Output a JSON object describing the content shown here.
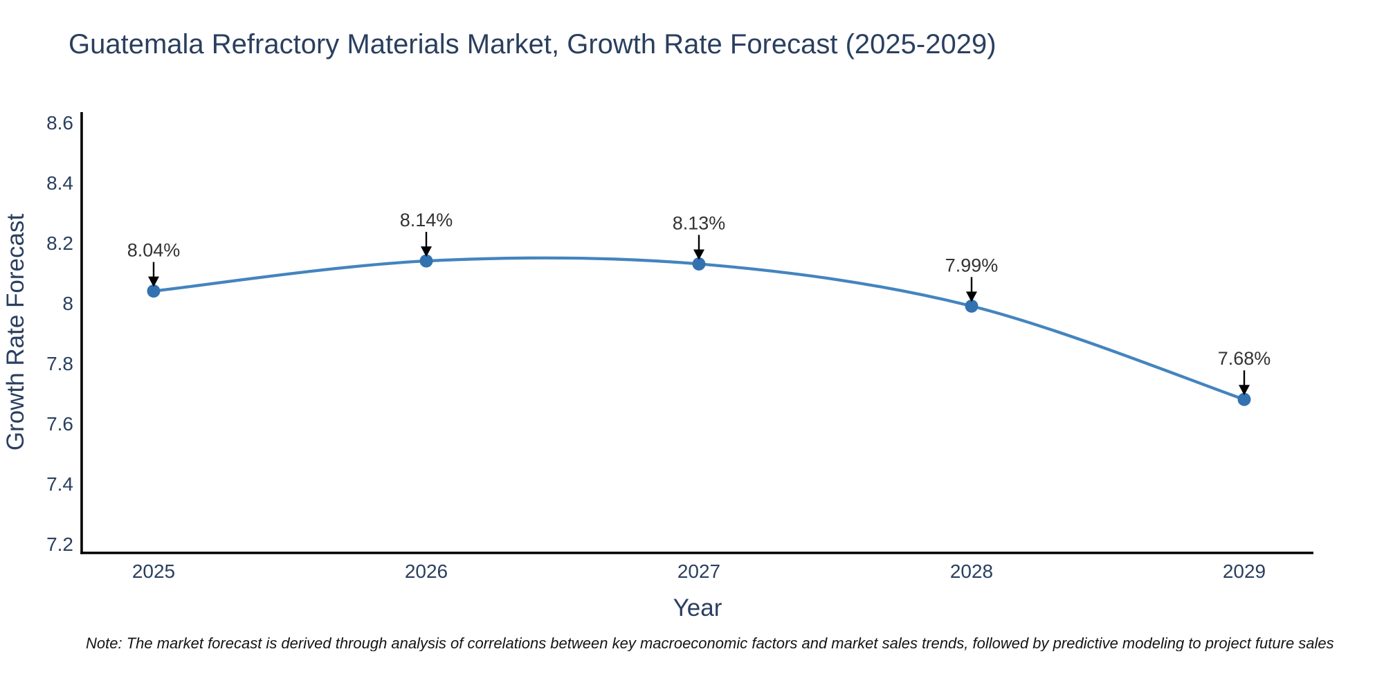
{
  "chart_data": {
    "type": "line",
    "title": "Guatemala Refractory Materials Market, Growth Rate Forecast (2025-2029)",
    "xlabel": "Year",
    "ylabel": "Growth Rate Forecast",
    "categories": [
      "2025",
      "2026",
      "2027",
      "2028",
      "2029"
    ],
    "values": [
      8.04,
      8.14,
      8.13,
      7.99,
      7.68
    ],
    "point_labels": [
      "8.04%",
      "8.14%",
      "8.13%",
      "7.99%",
      "7.68%"
    ],
    "y_tick_values": [
      8.6,
      8.4,
      8.2,
      8.0,
      7.8,
      7.6,
      7.4,
      7.2
    ],
    "y_tick_labels": [
      "8.6",
      "8.4",
      "8.2",
      "8",
      "7.8",
      "7.6",
      "7.4",
      "7.2"
    ],
    "ylim": [
      7.17,
      8.635
    ],
    "line_shape": "spline",
    "grid": false,
    "legend": "none",
    "colors": {
      "line": "#4484bf",
      "marker": "#3372b1",
      "axis": "#000000",
      "tick_label": "#2a3f5f",
      "axis_title": "#2a3f5f",
      "chart_title": "#2a3f5f",
      "annotation_text": "#333333",
      "annotation_arrow": "#000000",
      "background": "#ffffff"
    },
    "note": "Note: The market forecast is derived through analysis of correlations between key macroeconomic factors and market sales trends, followed by predictive modeling to project future sales"
  }
}
